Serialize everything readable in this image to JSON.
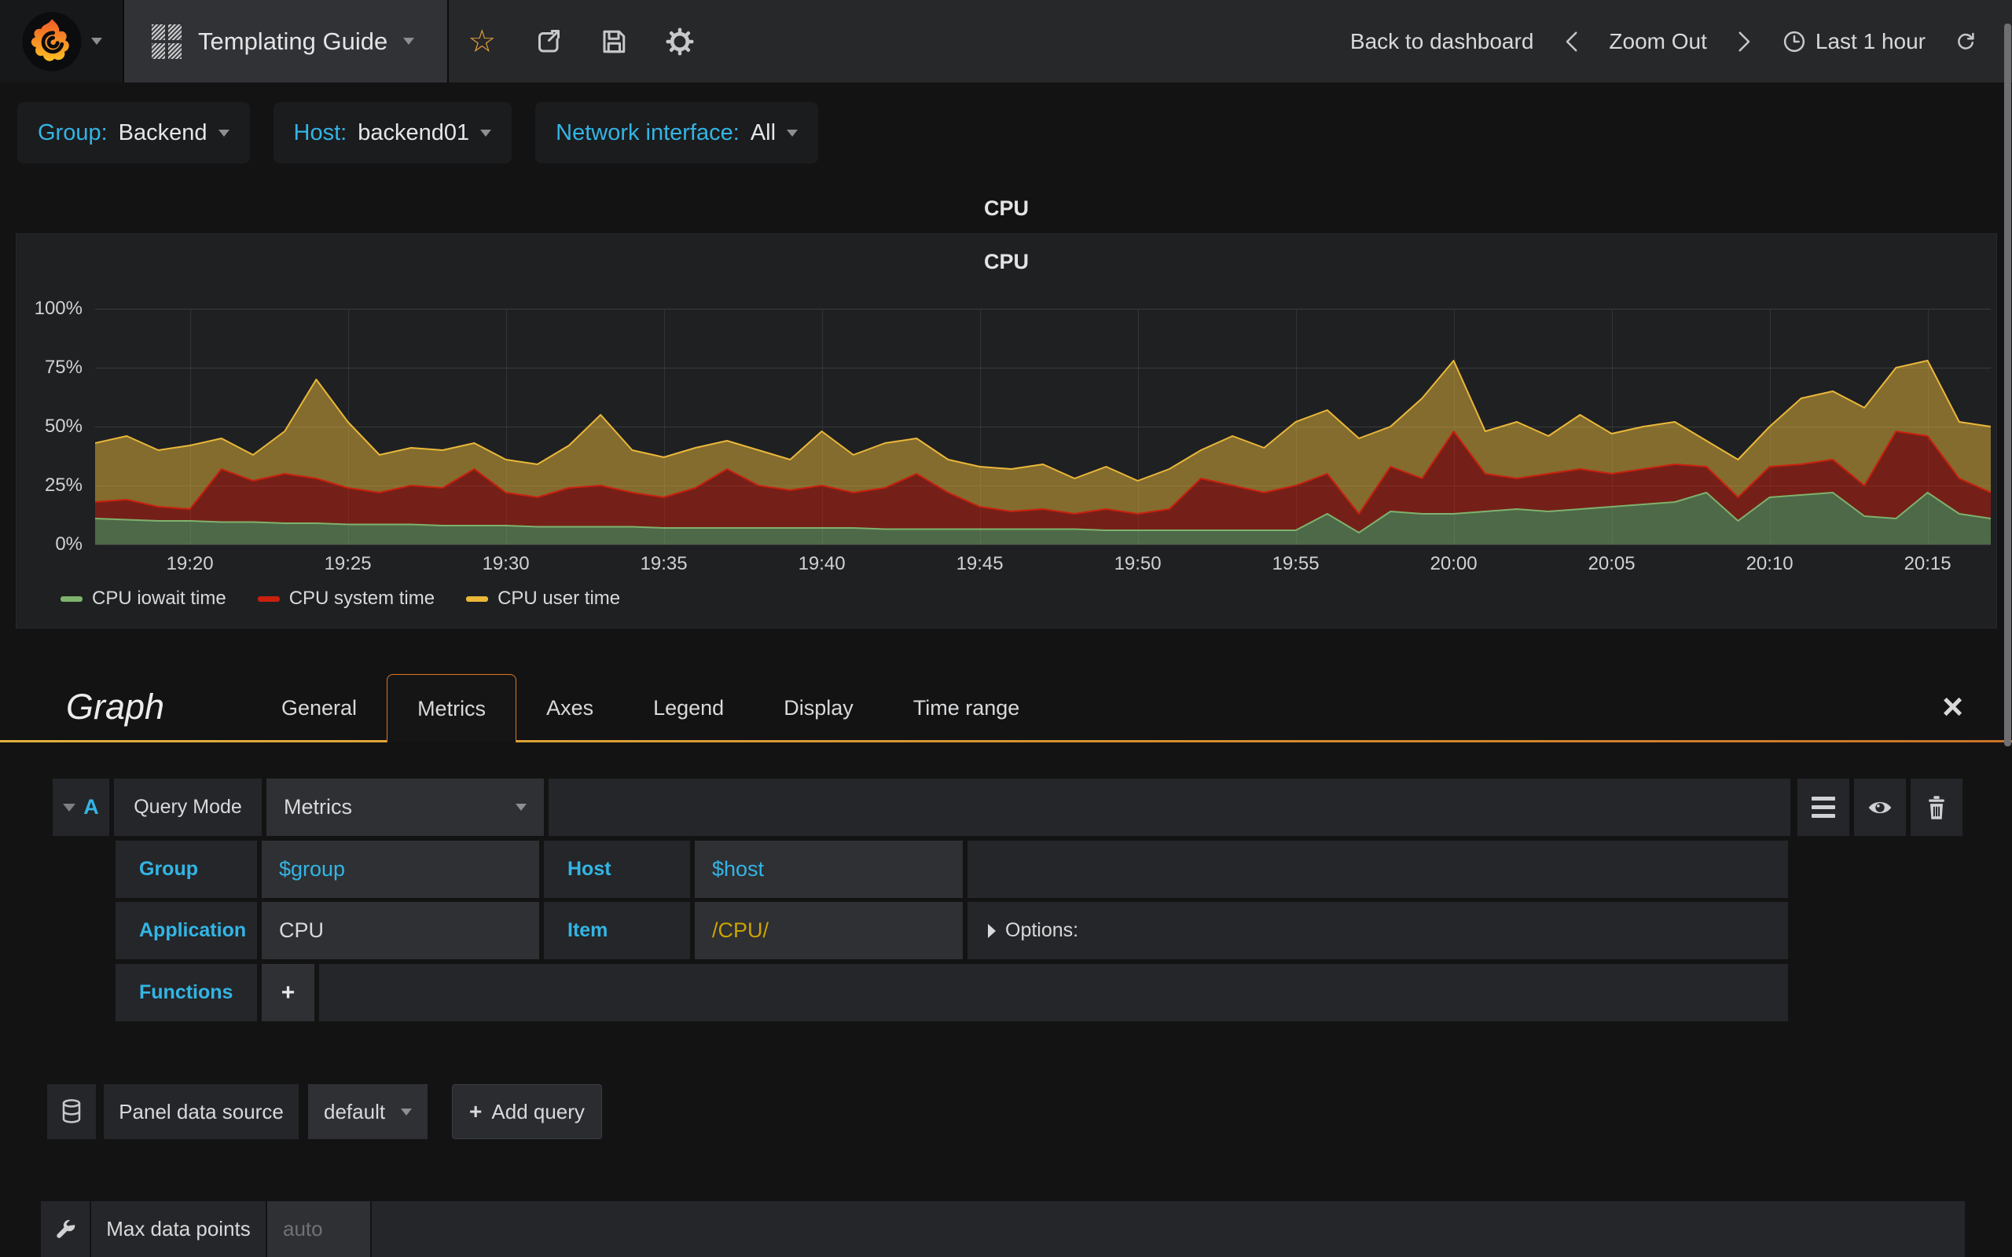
{
  "navbar": {
    "dashboard_title": "Templating Guide",
    "back_to_dashboard": "Back to dashboard",
    "zoom_out": "Zoom Out",
    "time_range": "Last 1 hour"
  },
  "icons": {
    "star": "☆",
    "close": "×",
    "plus": "+"
  },
  "variables": [
    {
      "label": "Group:",
      "value": "Backend"
    },
    {
      "label": "Host:",
      "value": "backend01"
    },
    {
      "label": "Network interface:",
      "value": "All"
    }
  ],
  "panel": {
    "header_title": "CPU",
    "chart_title": "CPU"
  },
  "chart_data": {
    "type": "area",
    "stacked": true,
    "title": "CPU",
    "unit": "percent",
    "ylim": [
      0,
      100
    ],
    "grid": true,
    "legend_position": "bottom-left",
    "x_start": "19:17",
    "x_step_minutes": 1,
    "x_ticks": [
      {
        "label": "19:20",
        "index": 3
      },
      {
        "label": "19:25",
        "index": 8
      },
      {
        "label": "19:30",
        "index": 13
      },
      {
        "label": "19:35",
        "index": 18
      },
      {
        "label": "19:40",
        "index": 23
      },
      {
        "label": "19:45",
        "index": 28
      },
      {
        "label": "19:50",
        "index": 33
      },
      {
        "label": "19:55",
        "index": 38
      },
      {
        "label": "20:00",
        "index": 43
      },
      {
        "label": "20:05",
        "index": 48
      },
      {
        "label": "20:10",
        "index": 53
      },
      {
        "label": "20:15",
        "index": 58
      }
    ],
    "y_ticks": [
      {
        "label": "0%",
        "value": 0
      },
      {
        "label": "25%",
        "value": 25
      },
      {
        "label": "50%",
        "value": 50
      },
      {
        "label": "75%",
        "value": 75
      },
      {
        "label": "100%",
        "value": 100
      }
    ],
    "fill_opacity": 0.5,
    "series": [
      {
        "name": "CPU iowait time",
        "color": "#7EB26D",
        "values": [
          11,
          10.5,
          10,
          10,
          9.5,
          9.5,
          9,
          9,
          8.5,
          8.5,
          8.5,
          8,
          8,
          8,
          7.5,
          7.5,
          7.5,
          7.5,
          7,
          7,
          7,
          7,
          7,
          7,
          7,
          6.5,
          6.5,
          6.5,
          6.5,
          6.5,
          6.5,
          6.5,
          6,
          6,
          6,
          6,
          6,
          6,
          6,
          13,
          5,
          14,
          13,
          13,
          14,
          15,
          14,
          15,
          16,
          17,
          18,
          22,
          10,
          20,
          21,
          22,
          12,
          11,
          22,
          13,
          11
        ]
      },
      {
        "name": "CPU system time",
        "color": "#C9200E",
        "values": [
          7,
          8.5,
          6,
          5,
          22.5,
          17.5,
          21,
          19,
          15.5,
          13.5,
          16.5,
          16,
          24,
          14,
          12.5,
          16.5,
          17.5,
          14.5,
          13,
          17,
          25,
          18,
          16,
          18,
          15,
          17.5,
          23.5,
          15.5,
          9.5,
          7.5,
          8.5,
          6.5,
          9,
          7,
          9,
          22,
          19,
          16,
          19,
          17,
          8,
          19,
          15,
          35,
          16,
          13,
          16,
          17,
          14,
          15,
          16,
          11,
          10,
          13,
          13,
          14,
          13,
          37,
          24,
          15,
          11
        ]
      },
      {
        "name": "CPU user time",
        "color": "#EAB839",
        "values": [
          25,
          27,
          24,
          27,
          13,
          11,
          18,
          42,
          28,
          16,
          16,
          16,
          11,
          14,
          14,
          18,
          30,
          18,
          17,
          17,
          12,
          15,
          13,
          23,
          16,
          19,
          15,
          14,
          17,
          18,
          19,
          15,
          18,
          14,
          17,
          12,
          21,
          19,
          27,
          27,
          32,
          17,
          34,
          30,
          18,
          24,
          16,
          23,
          17,
          18,
          18,
          11,
          16,
          17,
          28,
          29,
          33,
          27,
          32,
          24,
          28
        ]
      }
    ]
  },
  "editor": {
    "section_title": "Graph",
    "tabs": [
      "General",
      "Metrics",
      "Axes",
      "Legend",
      "Display",
      "Time range"
    ],
    "active_tab": "Metrics",
    "query": {
      "ref": "A",
      "mode_label": "Query Mode",
      "mode_value": "Metrics",
      "group_label": "Group",
      "group_value": "$group",
      "host_label": "Host",
      "host_value": "$host",
      "application_label": "Application",
      "application_value": "CPU",
      "item_label": "Item",
      "item_value": "/CPU/",
      "options_label": "Options:",
      "functions_label": "Functions"
    },
    "datasource": {
      "label": "Panel data source",
      "value": "default",
      "add_query_label": "Add query"
    },
    "max_data_points": {
      "label": "Max data points",
      "placeholder": "auto"
    }
  }
}
